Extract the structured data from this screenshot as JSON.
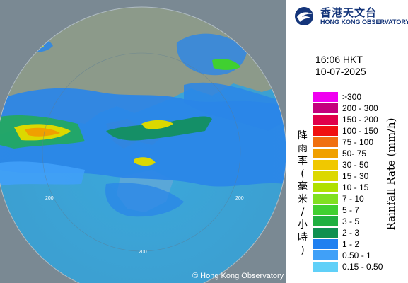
{
  "organization": {
    "name_zh": "香港天文台",
    "name_en": "HONG KONG OBSERVATORY",
    "brand_color": "#14357a"
  },
  "timestamp": {
    "time": "16:06 HKT",
    "date": "10-07-2025"
  },
  "copyright": "© Hong Kong Observatory",
  "range_ring_labels": [
    "200",
    "200",
    "200"
  ],
  "legend": {
    "title_zh": "降雨率(毫米/小時)",
    "title_en": "Rainfall Rate (mm/h)",
    "items": [
      {
        "label": ">300",
        "color": "#f000f0"
      },
      {
        "label": "200 - 300",
        "color": "#c4007c"
      },
      {
        "label": "150 - 200",
        "color": "#e0004a"
      },
      {
        "label": "100 - 150",
        "color": "#f01010"
      },
      {
        "label": "75 - 100",
        "color": "#f07010"
      },
      {
        "label": "50- 75",
        "color": "#f0a000"
      },
      {
        "label": "30 - 50",
        "color": "#f0c800"
      },
      {
        "label": "15 - 30",
        "color": "#dcd800"
      },
      {
        "label": "10 - 15",
        "color": "#b0e000"
      },
      {
        "label": "7 - 10",
        "color": "#80e020"
      },
      {
        "label": "5 - 7",
        "color": "#40d030"
      },
      {
        "label": "3 - 5",
        "color": "#20b040"
      },
      {
        "label": "2 - 3",
        "color": "#109050"
      },
      {
        "label": "1 - 2",
        "color": "#2080f0"
      },
      {
        "label": "0.50 - 1",
        "color": "#40a0f8"
      },
      {
        "label": "0.15 - 0.50",
        "color": "#60d0f8"
      }
    ]
  }
}
